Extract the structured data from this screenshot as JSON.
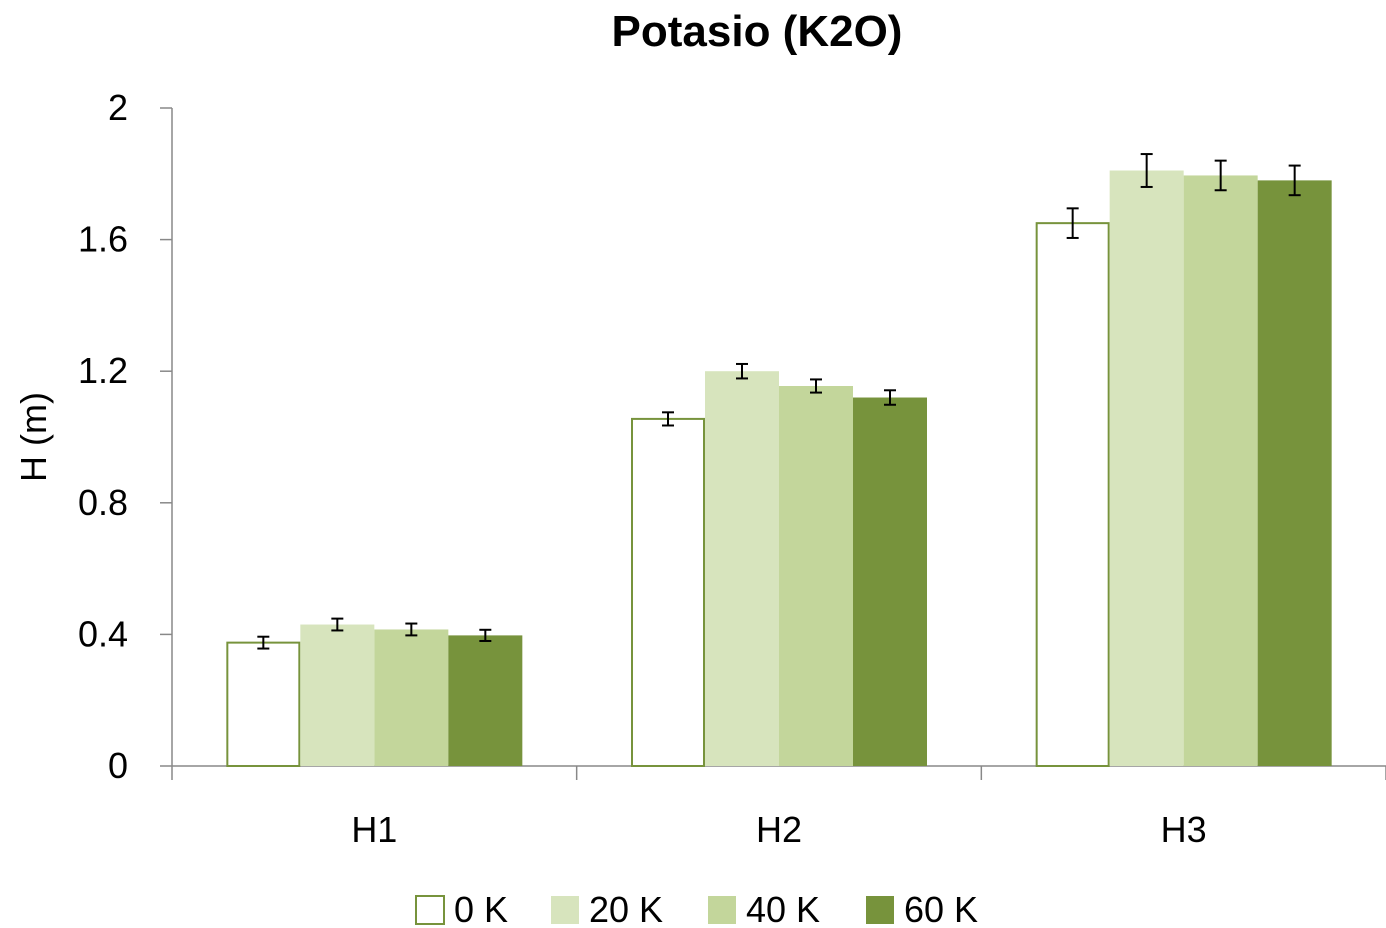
{
  "chart_data": {
    "type": "bar",
    "title": "Potasio (K2O)",
    "xlabel": "",
    "ylabel": "H (m)",
    "ylim": [
      0,
      2
    ],
    "yticks": [
      "0",
      "0.4",
      "0.8",
      "1.2",
      "1.6",
      "2"
    ],
    "categories": [
      "H1",
      "H2",
      "H3"
    ],
    "grid": false,
    "legend_position": "bottom",
    "series": [
      {
        "name": "0 K",
        "color": "#ffffff",
        "stroke": "#77933c",
        "values": [
          0.375,
          1.055,
          1.65
        ],
        "errors": [
          0.018,
          0.02,
          0.045
        ]
      },
      {
        "name": "20 K",
        "color": "#d7e4bd",
        "stroke": "#d7e4bd",
        "values": [
          0.43,
          1.2,
          1.81
        ],
        "errors": [
          0.018,
          0.022,
          0.05
        ]
      },
      {
        "name": "40 K",
        "color": "#c3d69b",
        "stroke": "#c3d69b",
        "values": [
          0.415,
          1.155,
          1.795
        ],
        "errors": [
          0.018,
          0.02,
          0.045
        ]
      },
      {
        "name": "60 K",
        "color": "#77933c",
        "stroke": "#77933c",
        "values": [
          0.397,
          1.12,
          1.78
        ],
        "errors": [
          0.017,
          0.022,
          0.045
        ]
      }
    ]
  }
}
